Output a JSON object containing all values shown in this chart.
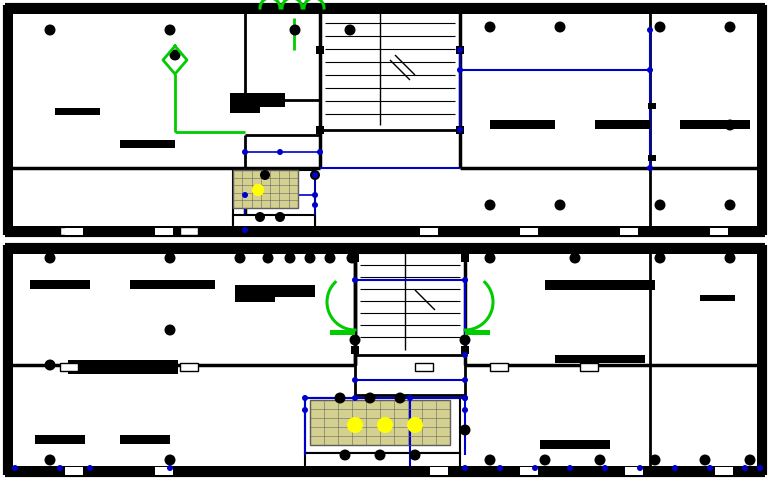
{
  "bg_color": "#ffffff",
  "wall_color": "#000000",
  "blue_color": "#0000cd",
  "green_color": "#00cc00",
  "yellow_color": "#ffff00",
  "figsize": [
    7.75,
    4.8
  ],
  "dpi": 100
}
